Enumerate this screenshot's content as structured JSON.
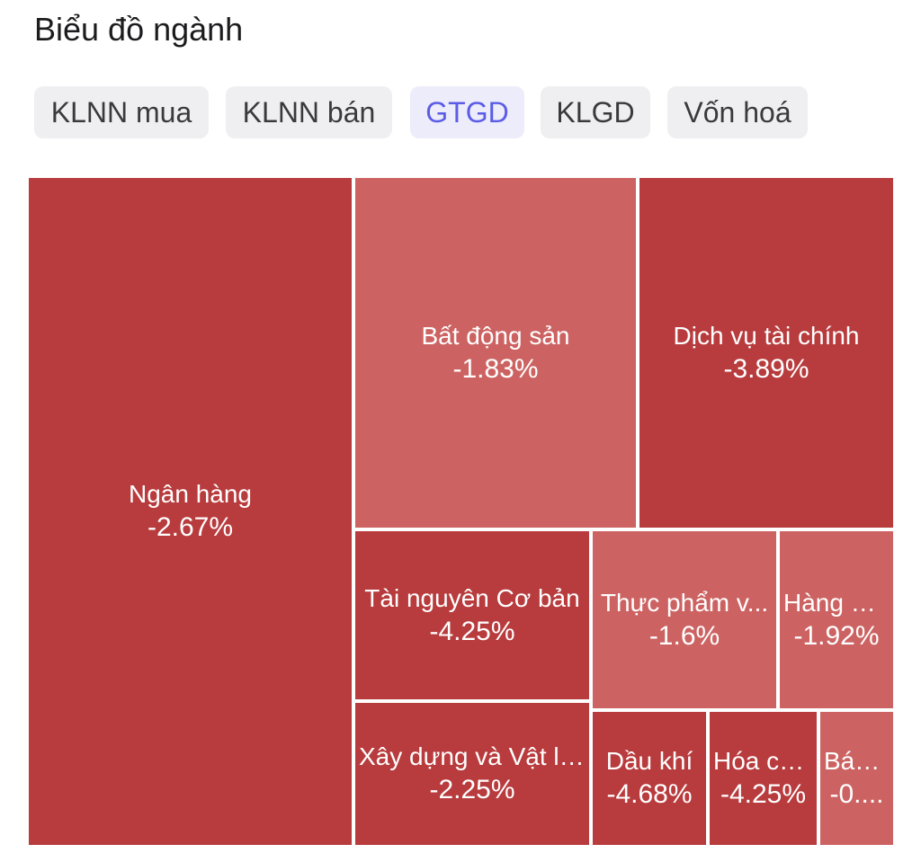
{
  "header": {
    "title": "Biểu đồ ngành"
  },
  "tabs": [
    {
      "label": "KLNN mua",
      "active": false
    },
    {
      "label": "KLNN bán",
      "active": false
    },
    {
      "label": "GTGD",
      "active": true
    },
    {
      "label": "KLGD",
      "active": false
    },
    {
      "label": "Vốn hoá",
      "active": false
    }
  ],
  "colors": {
    "accent": "#5b5ce6",
    "tab_bg": "#efeff2",
    "tab_active_bg": "#ececfb",
    "decline_strong": "#b83b3d",
    "decline_mild": "#cc6362"
  },
  "treemap": {
    "sectors": [
      {
        "name": "Ngân hàng",
        "change": "-2.67%",
        "shade": "dark"
      },
      {
        "name": "Bất động sản",
        "change": "-1.83%",
        "shade": "light"
      },
      {
        "name": "Dịch vụ tài chính",
        "change": "-3.89%",
        "shade": "dark"
      },
      {
        "name": "Tài nguyên Cơ bản",
        "change": "-4.25%",
        "shade": "dark"
      },
      {
        "name": "Thực phẩm v...",
        "change": "-1.6%",
        "shade": "light"
      },
      {
        "name": "Hàng & ...",
        "change": "-1.92%",
        "shade": "light"
      },
      {
        "name": "Xây dựng và Vật li...",
        "change": "-2.25%",
        "shade": "dark"
      },
      {
        "name": "Dầu khí",
        "change": "-4.68%",
        "shade": "dark"
      },
      {
        "name": "Hóa chất",
        "change": "-4.25%",
        "shade": "dark"
      },
      {
        "name": "Bán lẻ",
        "change": "-0....",
        "shade": "light"
      }
    ]
  }
}
